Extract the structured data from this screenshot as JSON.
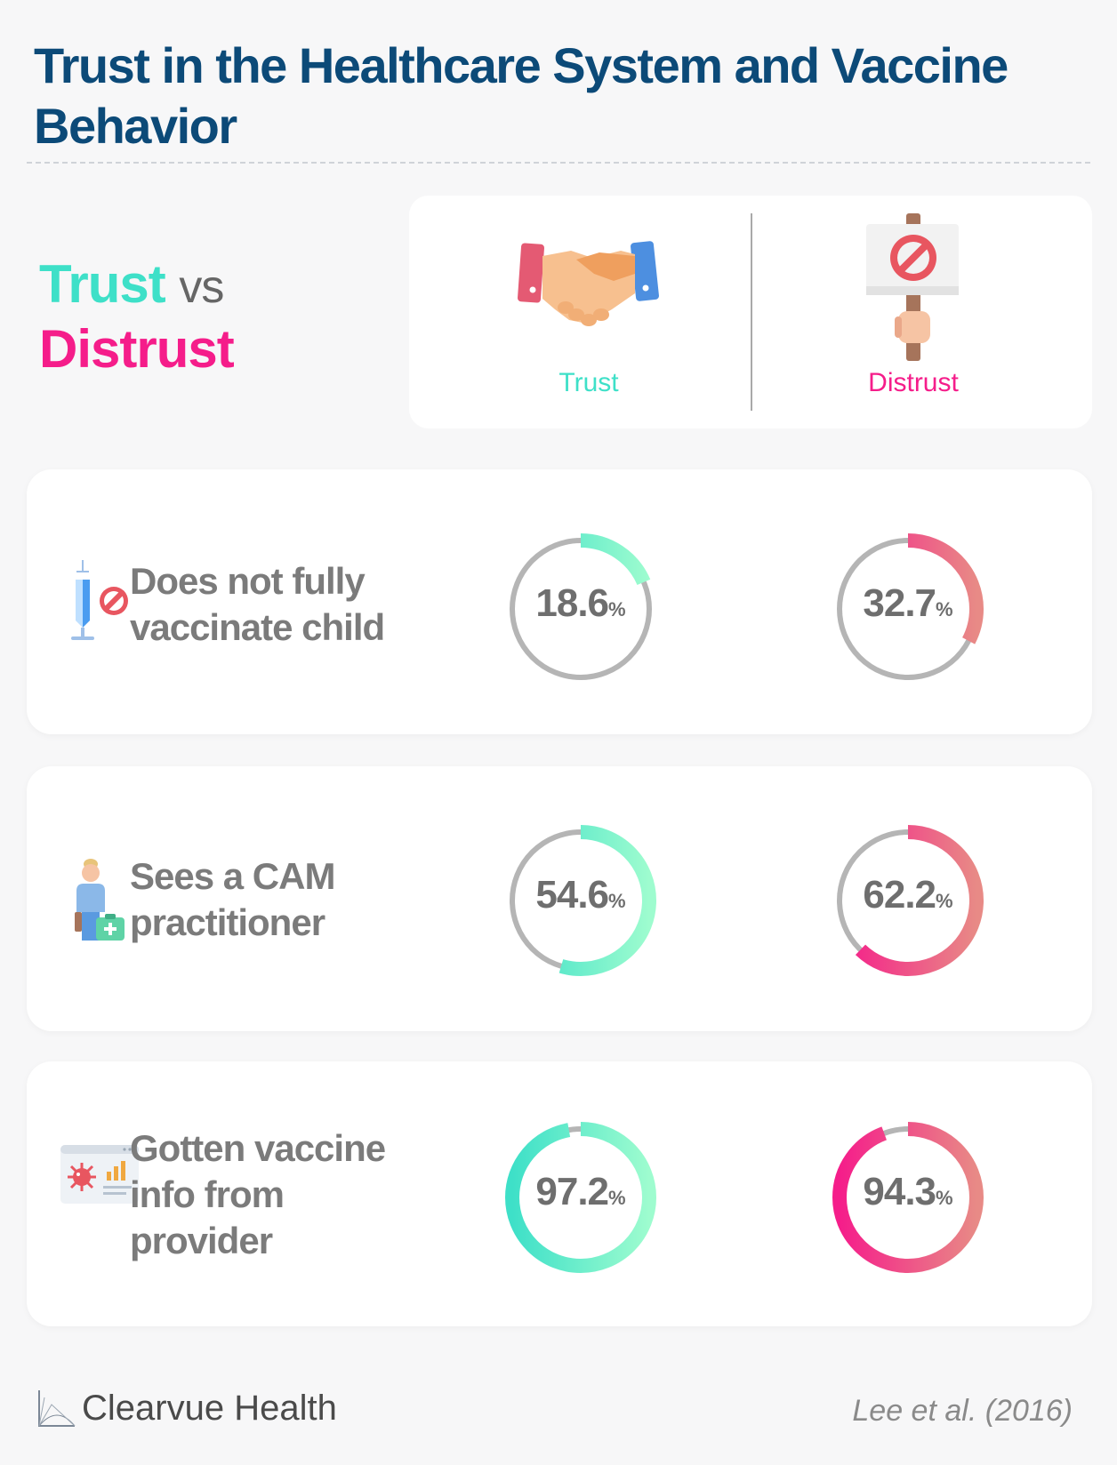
{
  "title": "Trust in the Healthcare System and Vaccine Behavior",
  "legend": {
    "trust_word": "Trust",
    "vs_word": "vs",
    "distrust_word": "Distrust",
    "trust_label": "Trust",
    "distrust_label": "Distrust"
  },
  "colors": {
    "title": "#0c4a78",
    "trust": "#3ee0c8",
    "trust_light": "#9efccf",
    "distrust": "#f51d8a",
    "distrust_light": "#e88a86",
    "track": "#b5b5b5"
  },
  "icons": {
    "legend_trust": "handshake-icon",
    "legend_distrust": "protest-sign-icon",
    "row1": "syringe-prohibited-icon",
    "row2": "practitioner-with-medkit-icon",
    "row3": "virus-info-screen-icon"
  },
  "chart_data": {
    "type": "donut",
    "unit": "%",
    "series": [
      {
        "name": "Trust",
        "values": [
          18.6,
          54.6,
          97.2
        ]
      },
      {
        "name": "Distrust",
        "values": [
          32.7,
          62.2,
          94.3
        ]
      }
    ],
    "categories": [
      "Does not fully vaccinate child",
      "Sees a CAM practitioner",
      "Gotten vaccine info from provider"
    ]
  },
  "rows": [
    {
      "label_lines": [
        "Does not fully",
        "vaccinate child"
      ],
      "trust": "18.6",
      "distrust": "32.7"
    },
    {
      "label_lines": [
        "Sees a CAM",
        "practitioner"
      ],
      "trust": "54.6",
      "distrust": "62.2"
    },
    {
      "label_lines": [
        "Gotten vaccine",
        "info from",
        "provider"
      ],
      "trust": "97.2",
      "distrust": "94.3"
    }
  ],
  "pct_symbol": "%",
  "brand": "Clearvue Health",
  "source": "Lee et al. (2016)"
}
